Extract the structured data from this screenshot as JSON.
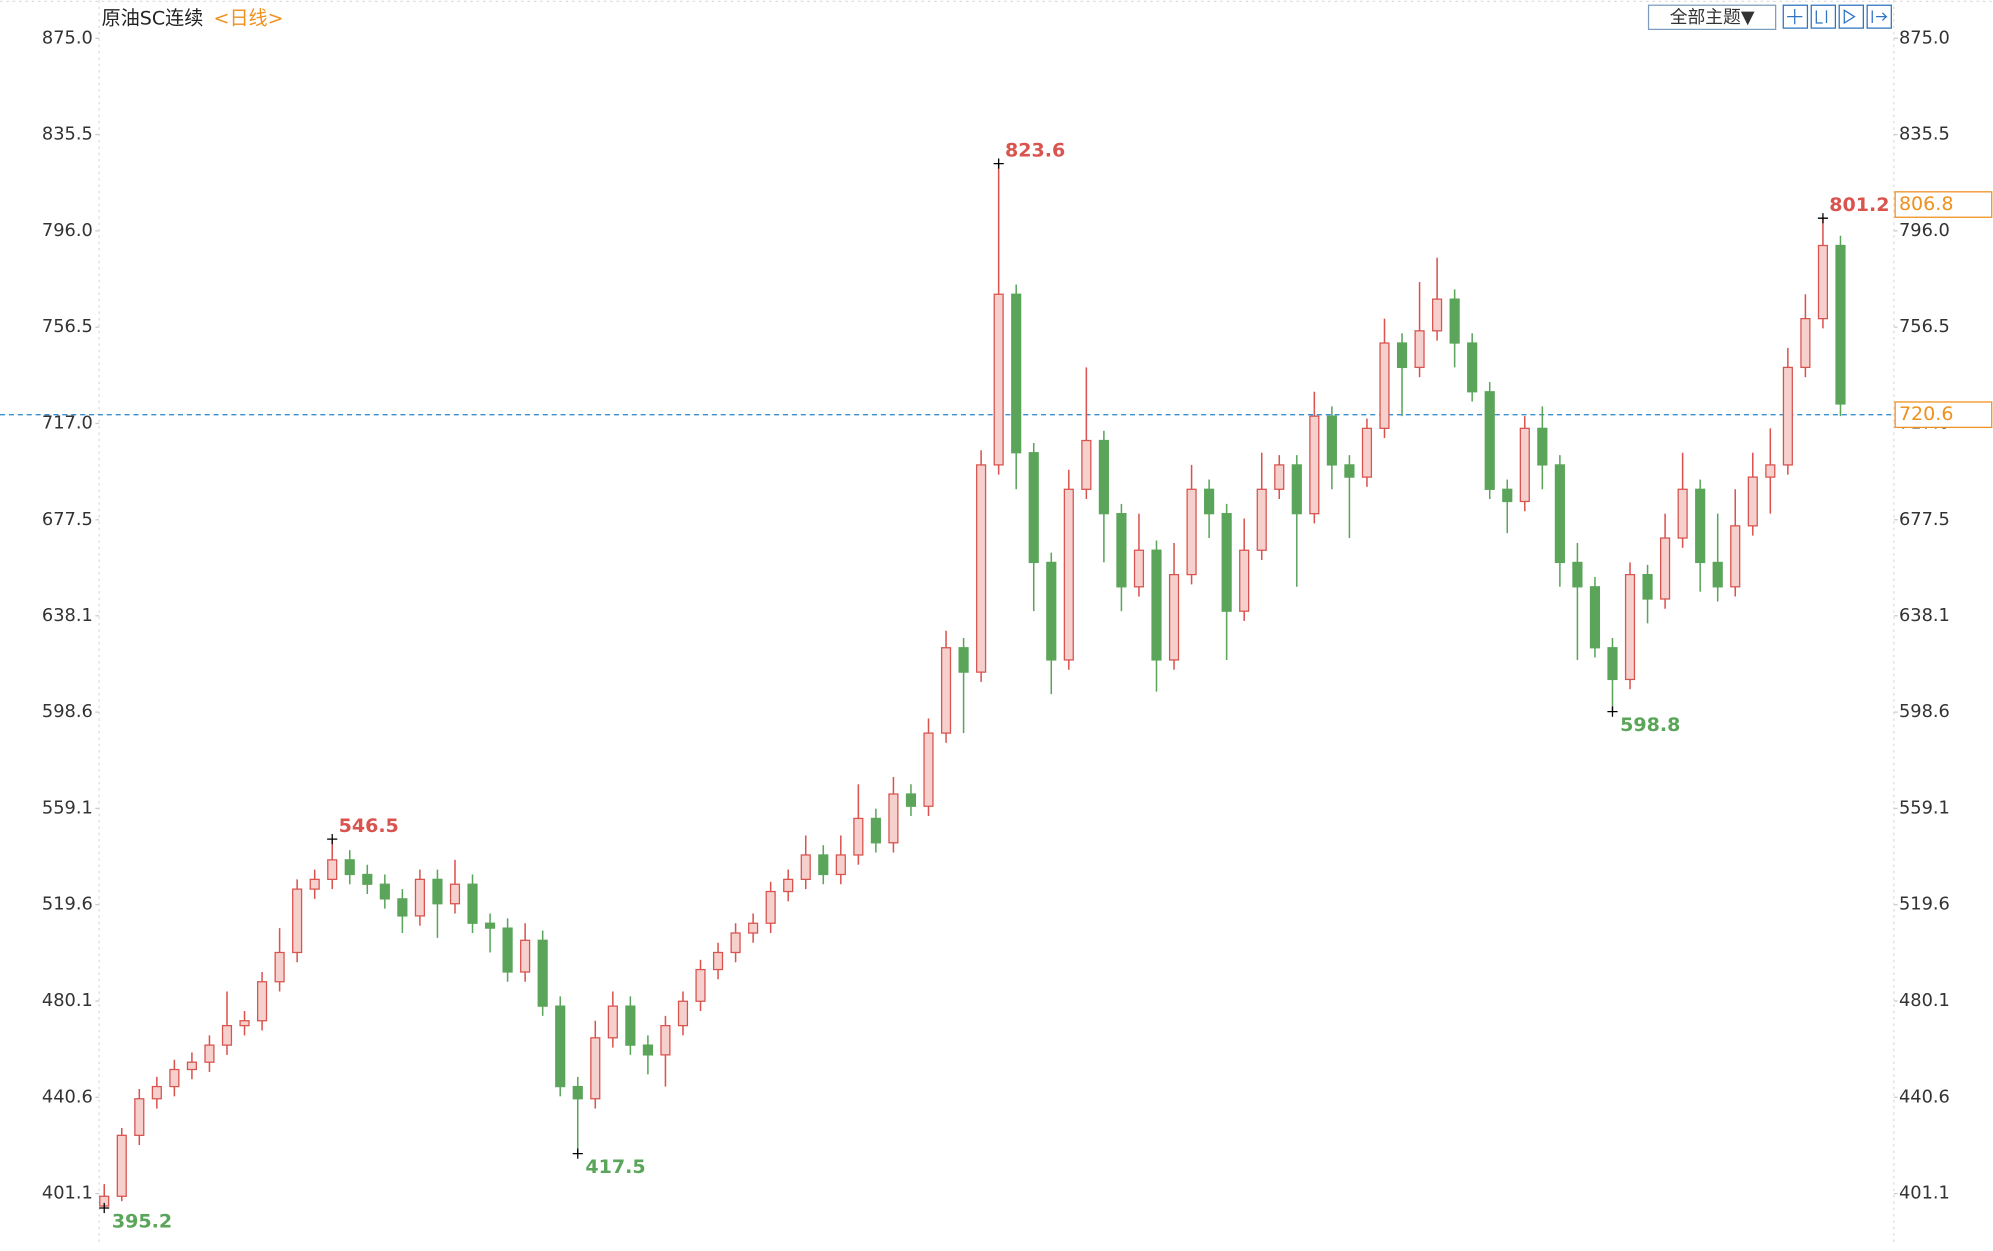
{
  "header": {
    "title": "原油SC连续",
    "period": "<日线>",
    "theme_button": "全部主题▼"
  },
  "chart_data": {
    "type": "candlestick",
    "ylim": [
      379.7,
      890.64
    ],
    "yticks": [
      401.1,
      440.6,
      480.1,
      519.6,
      559.1,
      598.6,
      638.1,
      {
        "value": 677.5,
        "label": "677.5"
      },
      {
        "value": 717,
        "label": "717.0"
      },
      756.5,
      {
        "value": 796,
        "label": "796.0"
      },
      835.5,
      {
        "value": 875,
        "label": "875.0"
      }
    ],
    "up_color": "#d9534f",
    "down_color": "#5aa55a",
    "price_line": 720.6,
    "price_line_color": "#3a8fd0",
    "right_markers": [
      806.8,
      720.6
    ],
    "series": [
      {
        "open": [
          396,
          400,
          425,
          440,
          445,
          452,
          455,
          462,
          470,
          472,
          488,
          500,
          526,
          530,
          538,
          532,
          528,
          522,
          515,
          530,
          520,
          528,
          512,
          510,
          492,
          505,
          478,
          445,
          440,
          465,
          478,
          462,
          458,
          470,
          480,
          493,
          500,
          508,
          512,
          525,
          530,
          540,
          532,
          540,
          555,
          545,
          565,
          560,
          590,
          625,
          615,
          700,
          770,
          705,
          660,
          620,
          690,
          710,
          680,
          650,
          665,
          620,
          655,
          690,
          680,
          640,
          665,
          690,
          700,
          680,
          720,
          700,
          695,
          715,
          750,
          740,
          755,
          768,
          750,
          730,
          690,
          685,
          715,
          700,
          660,
          650,
          625,
          612,
          655,
          645,
          670,
          690,
          660,
          650,
          675,
          695,
          700,
          740,
          760,
          790
        ],
        "high": [
          405,
          428,
          444,
          449,
          456,
          459,
          466,
          484,
          476,
          492,
          510,
          530,
          534,
          546.5,
          542,
          536,
          532,
          526,
          534,
          534,
          538,
          532,
          516,
          514,
          512,
          509,
          482,
          449,
          472,
          484,
          482,
          466,
          474,
          484,
          497,
          504,
          512,
          516,
          529,
          534,
          548,
          544,
          548,
          569,
          559,
          572,
          569,
          596,
          632,
          629,
          706,
          823.6,
          774,
          709,
          664,
          698,
          740,
          714,
          684,
          680,
          669,
          668,
          700,
          694,
          684,
          678,
          705,
          704,
          704,
          730,
          724,
          704,
          719,
          760,
          754,
          775,
          785,
          772,
          754,
          734,
          694,
          720,
          724,
          704,
          668,
          654,
          629,
          660,
          659,
          680,
          705,
          694,
          680,
          690,
          705,
          715,
          748,
          770,
          801.2,
          794
        ],
        "low": [
          395.2,
          398,
          421,
          436,
          441,
          448,
          451,
          458,
          466,
          468,
          484,
          496,
          522,
          526,
          528,
          524,
          518,
          508,
          511,
          506,
          516,
          508,
          500,
          488,
          488,
          474,
          441,
          417.5,
          436,
          461,
          458,
          450,
          445,
          466,
          476,
          489,
          496,
          504,
          508,
          521,
          526,
          528,
          528,
          536,
          541,
          541,
          556,
          556,
          586,
          590,
          611,
          696,
          690,
          640,
          606,
          616,
          686,
          660,
          640,
          646,
          607,
          616,
          651,
          670,
          620,
          636,
          661,
          686,
          650,
          676,
          690,
          670,
          691,
          711,
          720,
          736,
          751,
          740,
          726,
          686,
          672,
          681,
          690,
          650,
          620,
          621,
          598.8,
          608,
          635,
          641,
          666,
          648,
          644,
          646,
          671,
          680,
          696,
          736,
          756,
          720
        ],
        "close": [
          400,
          425,
          440,
          445,
          452,
          455,
          462,
          470,
          472,
          488,
          500,
          526,
          530,
          538,
          532,
          528,
          522,
          515,
          530,
          520,
          528,
          512,
          510,
          492,
          505,
          478,
          445,
          440,
          465,
          478,
          462,
          458,
          470,
          480,
          493,
          500,
          508,
          512,
          525,
          530,
          540,
          532,
          540,
          555,
          545,
          565,
          560,
          590,
          625,
          615,
          700,
          770,
          705,
          660,
          620,
          690,
          710,
          680,
          650,
          665,
          620,
          655,
          690,
          680,
          640,
          665,
          690,
          700,
          680,
          720,
          700,
          695,
          715,
          750,
          740,
          755,
          768,
          750,
          730,
          690,
          685,
          715,
          700,
          660,
          650,
          625,
          612,
          655,
          645,
          670,
          690,
          660,
          650,
          675,
          695,
          700,
          740,
          760,
          790,
          725
        ]
      }
    ]
  }
}
